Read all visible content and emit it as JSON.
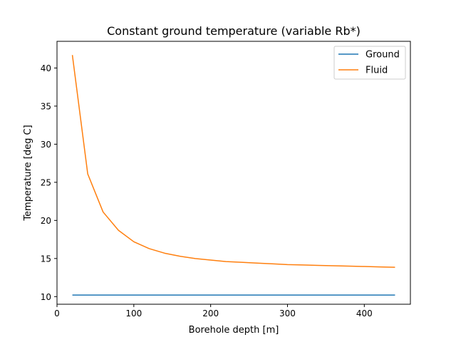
{
  "chart_data": {
    "type": "line",
    "title": "Constant ground temperature (variable Rb*)",
    "xlabel": "Borehole depth [m]",
    "ylabel": "Temperature [deg C]",
    "xlim": [
      0,
      460
    ],
    "ylim": [
      9,
      43.5
    ],
    "xticks": [
      0,
      100,
      200,
      300,
      400
    ],
    "yticks": [
      10,
      15,
      20,
      25,
      30,
      35,
      40
    ],
    "grid": false,
    "legend_position": "top-right",
    "series": [
      {
        "name": "Ground",
        "color": "#1f77b4",
        "x": [
          20,
          40,
          60,
          80,
          100,
          120,
          140,
          160,
          180,
          200,
          220,
          240,
          260,
          280,
          300,
          320,
          340,
          360,
          380,
          400,
          420,
          440
        ],
        "y": [
          10.2,
          10.2,
          10.2,
          10.2,
          10.2,
          10.2,
          10.2,
          10.2,
          10.2,
          10.2,
          10.2,
          10.2,
          10.2,
          10.2,
          10.2,
          10.2,
          10.2,
          10.2,
          10.2,
          10.2,
          10.2,
          10.2
        ]
      },
      {
        "name": "Fluid",
        "color": "#ff7f0e",
        "x": [
          20,
          40,
          60,
          80,
          100,
          120,
          140,
          160,
          180,
          200,
          220,
          240,
          260,
          280,
          300,
          320,
          340,
          360,
          380,
          400,
          420,
          440
        ],
        "y": [
          41.7,
          26.1,
          21.1,
          18.7,
          17.2,
          16.3,
          15.7,
          15.3,
          15.0,
          14.8,
          14.6,
          14.5,
          14.4,
          14.3,
          14.2,
          14.15,
          14.1,
          14.05,
          14.0,
          13.95,
          13.9,
          13.85
        ]
      }
    ]
  }
}
